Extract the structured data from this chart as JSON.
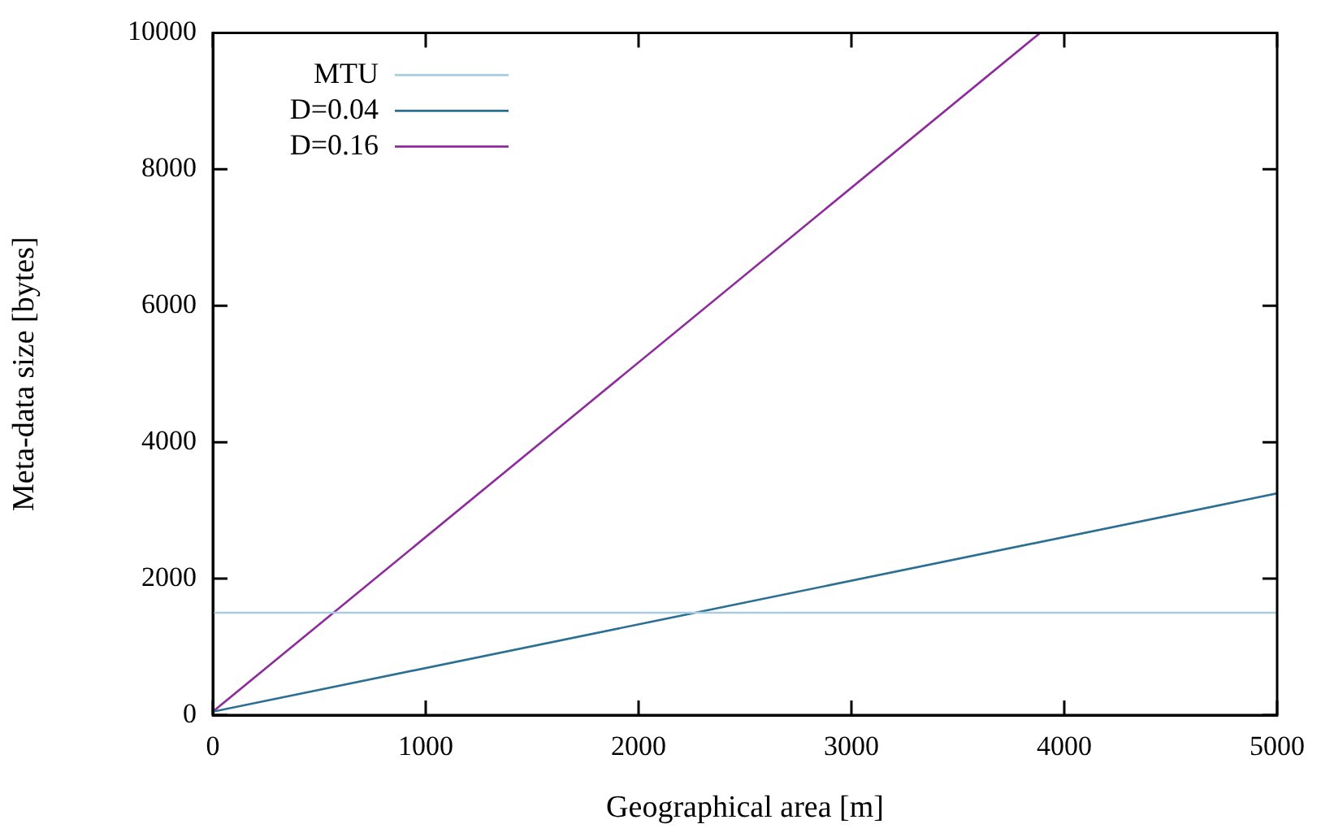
{
  "chart_data": {
    "type": "line",
    "xlabel": "Geographical area [m]",
    "ylabel": "Meta-data size [bytes]",
    "xlim": [
      0,
      5000
    ],
    "xticks": [
      0,
      1000,
      2000,
      3000,
      4000,
      5000
    ],
    "ylim": [
      0,
      10000
    ],
    "yticks": [
      0,
      2000,
      4000,
      6000,
      8000,
      10000
    ],
    "grid": false,
    "legend": "top left",
    "marker": "none",
    "line_style": "solid",
    "series": [
      {
        "name": "MTU",
        "color": "#a9cde0",
        "x": [
          0,
          5000
        ],
        "values": [
          1500,
          1500
        ]
      },
      {
        "name": "D=0.04",
        "color": "#2b7093",
        "x": [
          0,
          5000
        ],
        "values": [
          50,
          3250
        ]
      },
      {
        "name": "D=0.16",
        "color": "#8e2b9c",
        "x": [
          0,
          3887
        ],
        "values": [
          50,
          10000
        ]
      }
    ]
  }
}
